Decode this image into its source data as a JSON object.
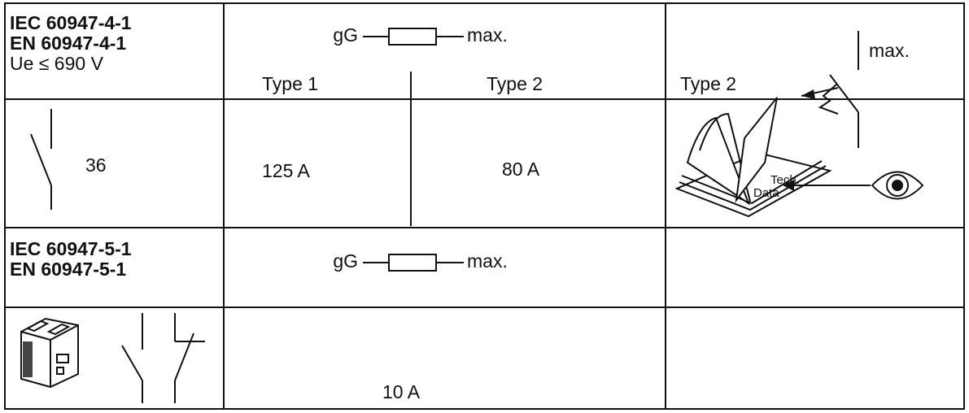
{
  "table": {
    "rows": [
      {
        "standard": [
          "IEC 60947-4-1",
          "EN 60947-4-1",
          "Ue ≤ 690 V"
        ],
        "fuse": {
          "prefix": "gG",
          "suffix": "max."
        },
        "types": [
          "Type 1",
          "Type 2"
        ],
        "breaker": {
          "type": "Type 2",
          "suffix": "max."
        }
      },
      {
        "rating": "36",
        "values": [
          "125 A",
          "80 A"
        ],
        "note": {
          "line1": "Tech.",
          "line2": "Data"
        }
      },
      {
        "standard": [
          "IEC 60947-5-1",
          "EN 60947-5-1"
        ],
        "fuse": {
          "prefix": "gG",
          "suffix": "max."
        }
      },
      {
        "values": [
          "10 A"
        ]
      }
    ]
  }
}
